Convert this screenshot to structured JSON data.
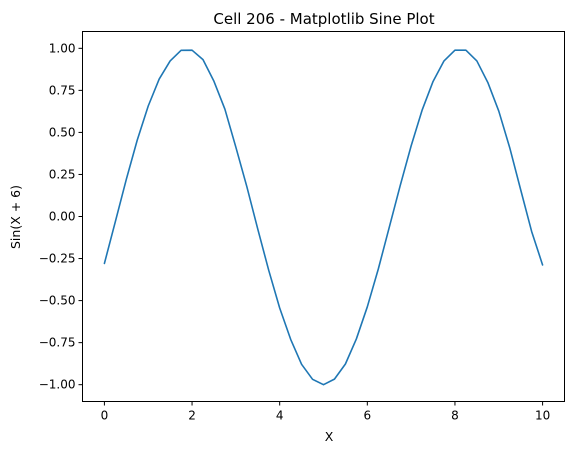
{
  "chart_data": {
    "type": "line",
    "title": "Cell 206 - Matplotlib Sine Plot",
    "xlabel": "X",
    "ylabel": "Sin(X + 6)",
    "xlim": [
      -0.5,
      10.5
    ],
    "ylim": [
      -1.1,
      1.1
    ],
    "xticks": [
      0,
      2,
      4,
      6,
      8,
      10
    ],
    "xtick_labels": [
      "0",
      "2",
      "4",
      "6",
      "8",
      "10"
    ],
    "yticks": [
      -1.0,
      -0.75,
      -0.5,
      -0.25,
      0.0,
      0.25,
      0.5,
      0.75,
      1.0
    ],
    "ytick_labels": [
      "−1.00",
      "−0.75",
      "−0.50",
      "−0.25",
      "0.00",
      "0.25",
      "0.50",
      "0.75",
      "1.00"
    ],
    "grid": false,
    "series": [
      {
        "color": "#1f77b4",
        "x": [
          0,
          0.25,
          0.5,
          0.75,
          1,
          1.25,
          1.5,
          1.75,
          2,
          2.25,
          2.5,
          2.75,
          3,
          3.25,
          3.5,
          3.75,
          4,
          4.25,
          4.5,
          4.75,
          5,
          5.25,
          5.5,
          5.75,
          6,
          6.25,
          6.5,
          6.75,
          7,
          7.25,
          7.5,
          7.75,
          8,
          8.25,
          8.5,
          8.75,
          9,
          9.25,
          9.5,
          9.75,
          10
        ],
        "y": [
          -0.279,
          -0.03,
          0.221,
          0.455,
          0.657,
          0.817,
          0.925,
          0.988,
          0.989,
          0.933,
          0.804,
          0.638,
          0.412,
          0.178,
          -0.075,
          -0.32,
          -0.544,
          -0.73,
          -0.879,
          -0.968,
          -1.0,
          -0.967,
          -0.877,
          -0.728,
          -0.537,
          -0.313,
          -0.065,
          0.183,
          0.42,
          0.632,
          0.803,
          0.925,
          0.989,
          0.989,
          0.925,
          0.797,
          0.627,
          0.409,
          0.159,
          -0.089,
          -0.288
        ]
      }
    ]
  }
}
